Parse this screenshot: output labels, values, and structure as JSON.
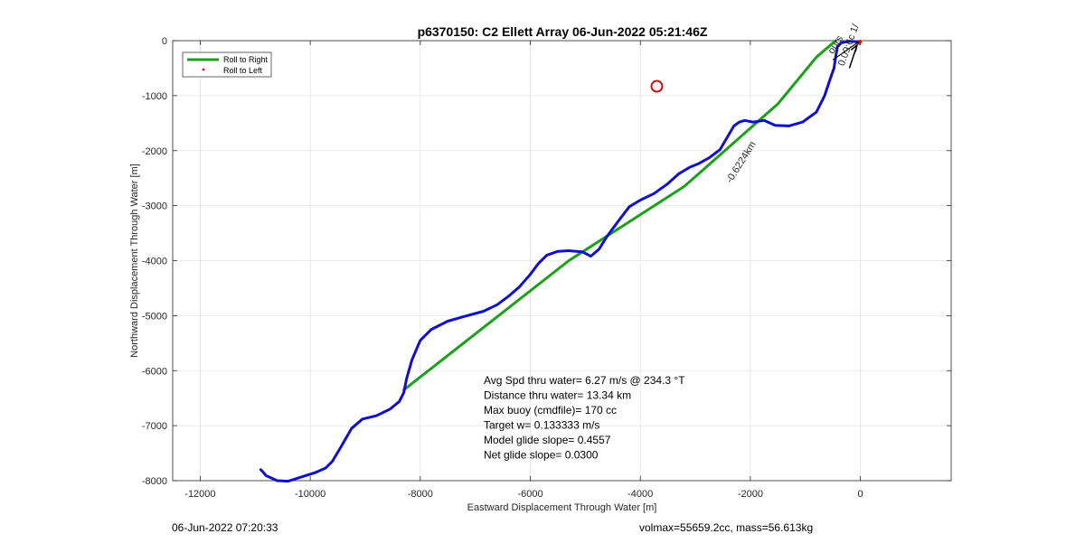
{
  "chart_data": {
    "type": "line",
    "title": "p6370150: C2 Ellett Array 06-Jun-2022 05:21:46Z",
    "xlabel": "Eastward Displacement Through Water [m]",
    "ylabel": "Northward Displacement Through Water [m]",
    "xlim": [
      -12500,
      1650
    ],
    "ylim": [
      -8000,
      0
    ],
    "xticks": [
      -12000,
      -10000,
      -8000,
      -6000,
      -4000,
      -2000,
      0
    ],
    "yticks": [
      0,
      -1000,
      -2000,
      -3000,
      -4000,
      -5000,
      -6000,
      -7000,
      -8000
    ],
    "grid": true,
    "legend": {
      "placement": "top-left",
      "entries": [
        "Roll to Right",
        "Roll to Left"
      ]
    },
    "series": [
      {
        "name": "Roll to Right",
        "color": "#1aa01a",
        "x": [
          -8300,
          -5300,
          -3200,
          -1500,
          -800,
          -450
        ],
        "y": [
          -6350,
          -4000,
          -2650,
          -1150,
          -300,
          0
        ]
      },
      {
        "name": "track",
        "color": "#1010c8",
        "x": [
          -10900,
          -10800,
          -10600,
          -10400,
          -10150,
          -9900,
          -9720,
          -9600,
          -9450,
          -9250,
          -9050,
          -8800,
          -8550,
          -8380,
          -8300,
          -8250,
          -8150,
          -8000,
          -7800,
          -7500,
          -7150,
          -6850,
          -6600,
          -6400,
          -6200,
          -6000,
          -5850,
          -5700,
          -5500,
          -5300,
          -5050,
          -4900,
          -4750,
          -4600,
          -4400,
          -4200,
          -4000,
          -3750,
          -3500,
          -3300,
          -3100,
          -2950,
          -2750,
          -2550,
          -2400,
          -2300,
          -2200,
          -2100,
          -1950,
          -1750,
          -1550,
          -1300,
          -1050,
          -800,
          -650,
          -550,
          -480,
          -450,
          -420,
          -350,
          -200,
          -60
        ],
        "y": [
          -7800,
          -7910,
          -8000,
          -8010,
          -7930,
          -7850,
          -7770,
          -7650,
          -7400,
          -7050,
          -6880,
          -6820,
          -6700,
          -6560,
          -6400,
          -6150,
          -5800,
          -5450,
          -5250,
          -5100,
          -5000,
          -4920,
          -4800,
          -4650,
          -4480,
          -4250,
          -4050,
          -3900,
          -3830,
          -3820,
          -3840,
          -3920,
          -3790,
          -3550,
          -3280,
          -3020,
          -2900,
          -2780,
          -2600,
          -2420,
          -2300,
          -2240,
          -2130,
          -1980,
          -1720,
          -1550,
          -1480,
          -1450,
          -1480,
          -1450,
          -1540,
          -1550,
          -1480,
          -1300,
          -1000,
          -700,
          -500,
          -300,
          -120,
          -40,
          -10,
          -20
        ]
      },
      {
        "name": "Roll to Left",
        "color": "#d01010",
        "x": [
          -20,
          -10
        ],
        "y": [
          -40,
          -20
        ]
      }
    ],
    "annotations": {
      "marker_circle": {
        "x": -3700,
        "y": -830,
        "color": "#d01010"
      },
      "track_label": "-0.6224km",
      "current_label": "ours",
      "current_speed_label": "0.09:6c 1/"
    }
  },
  "stats": {
    "avg_spd": "Avg Spd thru water=  6.27 m/s @ 234.3 °T",
    "distance": "Distance thru water= 13.34 km",
    "max_buoy": "Max buoy (cmdfile)= 170 cc",
    "target_w": "Target w= 0.133333 m/s",
    "model_slope": "Model glide slope= 0.4557",
    "net_slope": "Net glide slope= 0.0300"
  },
  "footer": {
    "timestamp": "06-Jun-2022 07:20:33",
    "vol_mass": "volmax=55659.2cc, mass=56.613kg"
  }
}
